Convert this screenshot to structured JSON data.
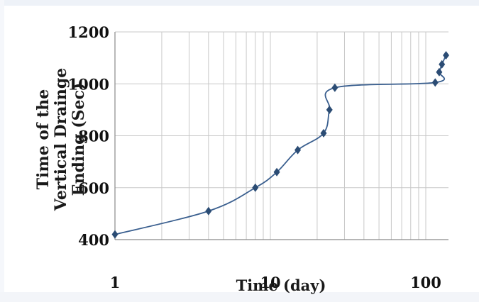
{
  "chart_data": {
    "type": "line",
    "xscale": "log",
    "xlim": [
      1,
      140
    ],
    "ylim": [
      400,
      1200
    ],
    "y_ticks": [
      400,
      600,
      800,
      1000,
      1200
    ],
    "y_tick_labels": [
      "400",
      "600",
      "800",
      "1000",
      "1200"
    ],
    "x_ticks": [
      1,
      10,
      100
    ],
    "x_tick_labels": [
      "1",
      "10",
      "100"
    ],
    "xlabel": "Time (day)",
    "ylabel_lines": [
      "Time of the",
      "Vertical Drainge",
      "Ending (Sec)"
    ],
    "grid": true,
    "legend": "none",
    "marker": "diamond",
    "line_color": "#3a5f8f",
    "marker_color": "#2b4c74",
    "series": [
      {
        "x": [
          1,
          4,
          8,
          11,
          15,
          22,
          24,
          26,
          115,
          122,
          127,
          135
        ],
        "y": [
          420,
          510,
          600,
          660,
          745,
          810,
          900,
          985,
          1005,
          1045,
          1075,
          1110
        ]
      }
    ]
  }
}
